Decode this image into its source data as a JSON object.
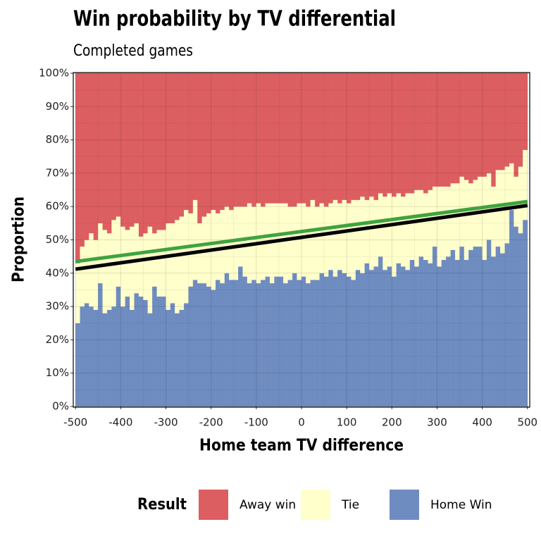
{
  "chart_data": {
    "type": "stacked_histogram",
    "title": "Win probability by TV differential",
    "subtitle": "Completed games",
    "xlabel": "Home team TV difference",
    "ylabel": "Proportion",
    "legend_title": "Result",
    "legend_position": "bottom",
    "bins": [
      -500,
      -490,
      -480,
      -470,
      -460,
      -450,
      -440,
      -430,
      -420,
      -410,
      -400,
      -390,
      -380,
      -370,
      -360,
      -350,
      -340,
      -330,
      -320,
      -310,
      -300,
      -290,
      -280,
      -270,
      -260,
      -250,
      -240,
      -230,
      -220,
      -210,
      -200,
      -190,
      -180,
      -170,
      -160,
      -150,
      -140,
      -130,
      -120,
      -110,
      -100,
      -90,
      -80,
      -70,
      -60,
      -50,
      -40,
      -30,
      -20,
      -10,
      0,
      10,
      20,
      30,
      40,
      50,
      60,
      70,
      80,
      90,
      100,
      110,
      120,
      130,
      140,
      150,
      160,
      170,
      180,
      190,
      200,
      210,
      220,
      230,
      240,
      250,
      260,
      270,
      280,
      290,
      300,
      310,
      320,
      330,
      340,
      350,
      360,
      370,
      380,
      390,
      400,
      410,
      420,
      430,
      440,
      450,
      460,
      470,
      480,
      490,
      500
    ],
    "series": [
      {
        "name": "Away win",
        "color": "#dc5e60",
        "values": [
          57,
          52,
          50,
          48,
          50,
          45,
          47,
          48,
          44,
          43,
          46,
          47,
          46,
          45,
          49,
          48,
          46,
          48,
          47,
          47,
          45,
          45,
          44,
          43,
          41,
          42,
          38,
          45,
          43,
          42,
          41,
          42,
          41,
          40,
          41,
          40,
          40,
          40,
          39,
          40,
          39,
          40,
          39,
          39,
          39,
          39,
          39,
          40,
          40,
          39,
          39,
          40,
          38,
          40,
          39,
          40,
          39,
          38,
          39,
          38,
          39,
          38,
          38,
          37,
          38,
          37,
          38,
          36,
          37,
          36,
          37,
          36,
          37,
          36,
          36,
          35,
          35,
          36,
          35,
          34,
          34,
          34,
          34,
          33,
          33,
          31,
          32,
          33,
          32,
          31,
          31,
          30,
          34,
          29,
          29,
          28,
          27,
          31,
          28,
          23
        ]
      },
      {
        "name": "Tie",
        "color": "#ffffcc",
        "values": [
          18,
          18,
          19,
          22,
          21,
          18,
          25,
          23,
          26,
          21,
          24,
          20,
          25,
          21,
          18,
          20,
          26,
          16,
          20,
          20,
          26,
          24,
          28,
          28,
          28,
          22,
          24,
          18,
          20,
          22,
          24,
          20,
          22,
          20,
          21,
          22,
          18,
          21,
          24,
          22,
          24,
          22,
          22,
          24,
          22,
          22,
          24,
          22,
          20,
          23,
          22,
          23,
          24,
          22,
          21,
          21,
          20,
          23,
          20,
          22,
          22,
          24,
          21,
          23,
          19,
          22,
          20,
          19,
          22,
          22,
          24,
          21,
          21,
          23,
          20,
          23,
          20,
          20,
          22,
          18,
          24,
          22,
          21,
          20,
          23,
          21,
          24,
          20,
          20,
          21,
          25,
          20,
          21,
          23,
          25,
          23,
          14,
          15,
          20,
          21
        ]
      },
      {
        "name": "Home Win",
        "color": "#6f8cc0",
        "values": [
          25,
          30,
          31,
          30,
          29,
          37,
          28,
          29,
          30,
          36,
          30,
          33,
          29,
          34,
          33,
          32,
          28,
          36,
          33,
          33,
          29,
          31,
          28,
          29,
          31,
          36,
          38,
          37,
          37,
          36,
          35,
          38,
          37,
          40,
          38,
          38,
          42,
          39,
          37,
          38,
          37,
          38,
          39,
          37,
          39,
          39,
          37,
          38,
          40,
          38,
          39,
          37,
          38,
          38,
          40,
          39,
          41,
          39,
          41,
          40,
          39,
          38,
          41,
          40,
          43,
          41,
          42,
          45,
          41,
          42,
          39,
          43,
          42,
          41,
          44,
          42,
          45,
          44,
          43,
          48,
          42,
          44,
          45,
          47,
          44,
          48,
          44,
          47,
          48,
          48,
          44,
          50,
          45,
          48,
          46,
          49,
          59,
          54,
          52,
          56
        ]
      }
    ],
    "lines": [
      {
        "color": "#3fa33f",
        "x": [
          -500,
          500
        ],
        "y": [
          43.5,
          61.5
        ]
      },
      {
        "color": "#000000",
        "x": [
          -500,
          500
        ],
        "y": [
          41.2,
          60.3
        ]
      }
    ],
    "xlim": [
      -505,
      505
    ],
    "xticks": [
      -500,
      -400,
      -300,
      -200,
      -100,
      0,
      100,
      200,
      300,
      400,
      500
    ],
    "ylim": [
      0,
      100
    ],
    "yticks": [
      {
        "value": 0,
        "label": "0%"
      },
      {
        "value": 10,
        "label": "10%"
      },
      {
        "value": 20,
        "label": "20%"
      },
      {
        "value": 30,
        "label": "30%"
      },
      {
        "value": 40,
        "label": "40%"
      },
      {
        "value": 50,
        "label": "50%"
      },
      {
        "value": 60,
        "label": "60%"
      },
      {
        "value": 70,
        "label": "70%"
      },
      {
        "value": 80,
        "label": "80%"
      },
      {
        "value": 90,
        "label": "90%"
      },
      {
        "value": 100,
        "label": "100%"
      }
    ],
    "grid": true
  }
}
